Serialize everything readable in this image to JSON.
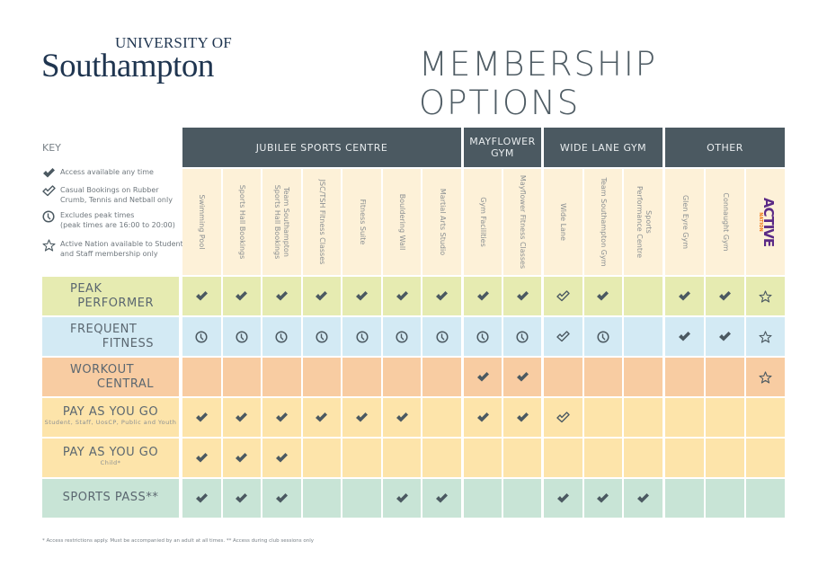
{
  "logo": {
    "line1": "UNIVERSITY OF",
    "line2": "Southampton"
  },
  "title": "MEMBERSHIP OPTIONS",
  "key": {
    "title": "KEY",
    "items": [
      {
        "icon": "check",
        "text": "Access available any time"
      },
      {
        "icon": "open-check",
        "text": "Casual Bookings on Rubber\nCrumb, Tennis and Netball only"
      },
      {
        "icon": "clock",
        "text": "Excludes peak times\n(peak times are 16:00 to 20:00)"
      },
      {
        "icon": "star",
        "text": "Active Nation available to Student\nand Staff membership only"
      }
    ]
  },
  "groups": [
    {
      "name": "JUBILEE SPORTS CENTRE",
      "columns": [
        "Swimming Pool",
        "Sports Hall Bookings",
        "Team Southampton\nSports Hall Bookings",
        "JSC/TSH Fitness Classes",
        "Fitness Suite",
        "Bouldering Wall",
        "Martial Arts Studio"
      ]
    },
    {
      "name": "MAYFLOWER\nGYM",
      "columns": [
        "Gym Facilities",
        "Mayflower Fitness Classes"
      ]
    },
    {
      "name": "WIDE LANE GYM",
      "columns": [
        "Wide Lane",
        "Team Southampton Gym",
        "Sports\nPerformance Centre"
      ]
    },
    {
      "name": "OTHER",
      "columns": [
        "Glen Eyre Gym",
        "Connaught Gym",
        "ACTIVE NATION"
      ]
    }
  ],
  "rows": [
    {
      "line1": "PEAK",
      "line2": "PERFORMER",
      "sub": "",
      "color": "#e6ebb1",
      "cells": [
        "check",
        "check",
        "check",
        "check",
        "check",
        "check",
        "check",
        "check",
        "check",
        "open-check",
        "check",
        "",
        "check",
        "check",
        "star"
      ]
    },
    {
      "line1": "FREQUENT",
      "line2": "FITNESS",
      "sub": "",
      "color": "#d3eaf4",
      "cells": [
        "clock",
        "clock",
        "clock",
        "clock",
        "clock",
        "clock",
        "clock",
        "clock",
        "clock",
        "open-check",
        "clock",
        "",
        "check",
        "check",
        "star"
      ]
    },
    {
      "line1": "WORKOUT",
      "line2": "CENTRAL",
      "sub": "",
      "color": "#f8cca2",
      "cells": [
        "",
        "",
        "",
        "",
        "",
        "",
        "",
        "check",
        "check",
        "",
        "",
        "",
        "",
        "",
        "star"
      ]
    },
    {
      "line1": "PAY AS YOU GO",
      "line2": "",
      "sub": "Student, Staff, UosCP, Public and Youth",
      "color": "#fde4aa",
      "cells": [
        "check",
        "check",
        "check",
        "check",
        "check",
        "check",
        "",
        "check",
        "check",
        "open-check",
        "",
        "",
        "",
        "",
        ""
      ]
    },
    {
      "line1": "PAY AS YOU GO",
      "line2": "",
      "sub": "Child*",
      "color": "#fde4aa",
      "cells": [
        "check",
        "check",
        "check",
        "",
        "",
        "",
        "",
        "",
        "",
        "",
        "",
        "",
        "",
        "",
        ""
      ]
    },
    {
      "line1": "SPORTS PASS**",
      "line2": "",
      "sub": "",
      "color": "#c8e4d6",
      "cells": [
        "check",
        "check",
        "check",
        "",
        "",
        "check",
        "check",
        "",
        "",
        "check",
        "check",
        "check",
        "",
        "",
        ""
      ]
    }
  ],
  "footnote": "* Access restrictions apply. Must be accompanied by an adult at all times.      ** Access during club sessions only",
  "colors": {
    "header": "#4b5961",
    "subheader": "#fdf1d8",
    "icon": "#4b5961",
    "active_purple": "#5b2a86",
    "active_orange": "#f07a1a"
  }
}
